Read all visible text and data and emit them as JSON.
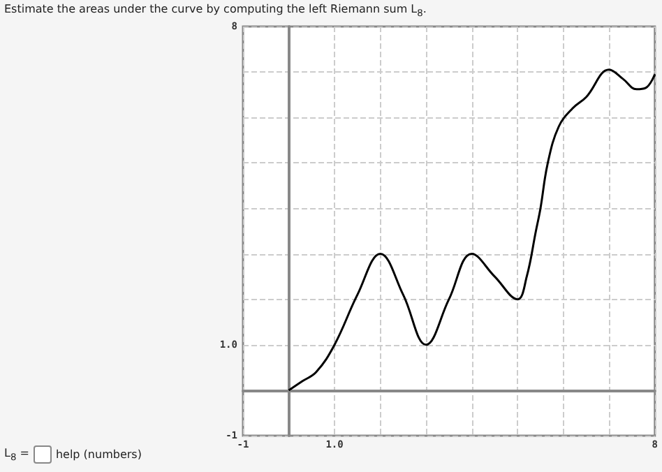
{
  "chart_data": {
    "type": "line",
    "title": "Estimate the areas under the curve by computing the left Riemann sum L$_{8}$.",
    "annotations": [
      "L$_{8}$ =",
      "help (numbers)"
    ],
    "x": [
      0,
      0.3,
      0.6,
      1,
      1.5,
      2,
      2.5,
      3,
      3.5,
      4,
      4.5,
      5,
      5.2,
      5.4,
      5.5,
      5.66,
      5.9,
      6.2,
      6.5,
      7,
      7.3,
      7.6,
      7.8,
      8
    ],
    "series": [
      {
        "color": "#000000",
        "values": [
          0,
          0.2,
          0.4,
          1,
          2.1,
          3,
          2.1,
          1,
          2,
          3,
          2.5,
          2,
          2.5,
          3.5,
          4,
          5,
          5.8,
          6.2,
          6.45,
          7.05,
          6.85,
          6.62,
          6.65,
          6.95
        ]
      }
    ],
    "xlim": [
      -1,
      8
    ],
    "ylim": [
      -1,
      8
    ],
    "xticks": [
      {
        "value": -1,
        "label": "-1"
      },
      {
        "value": 0,
        "label": null
      },
      {
        "value": 1,
        "label": "1.0"
      },
      {
        "value": 2,
        "label": null
      },
      {
        "value": 3,
        "label": null
      },
      {
        "value": 4,
        "label": null
      },
      {
        "value": 5,
        "label": null
      },
      {
        "value": 6,
        "label": null
      },
      {
        "value": 7,
        "label": null
      },
      {
        "value": 8,
        "label": "8"
      }
    ],
    "yticks": [
      {
        "value": -1,
        "label": "-1"
      },
      {
        "value": 0,
        "label": null
      },
      {
        "value": 1,
        "label": "1.0"
      },
      {
        "value": 2,
        "label": null
      },
      {
        "value": 3,
        "label": null
      },
      {
        "value": 4,
        "label": null
      },
      {
        "value": 5,
        "label": null
      },
      {
        "value": 6,
        "label": null
      },
      {
        "value": 7,
        "label": null
      },
      {
        "value": 8,
        "label": "8"
      }
    ],
    "grid": true,
    "marker": "none",
    "line_style": "solid"
  }
}
